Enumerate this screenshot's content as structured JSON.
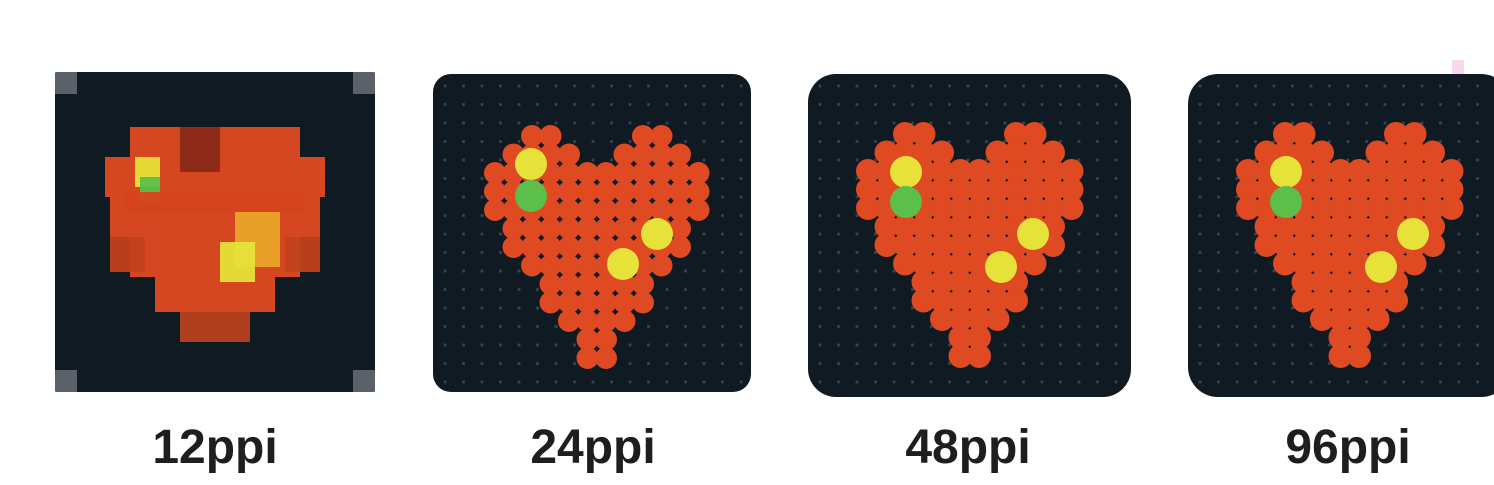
{
  "captions": [
    "12ppi",
    "24ppi",
    "48ppi",
    "96ppi"
  ],
  "colors": {
    "panel": "#0f1a22",
    "heart_red": "#e04a22",
    "heart_dark": "#8a2a18",
    "yellow": "#e6e23a",
    "green": "#5cbf4a",
    "dot": "#34424c"
  },
  "icons": [
    "pixel-heart-icon"
  ]
}
